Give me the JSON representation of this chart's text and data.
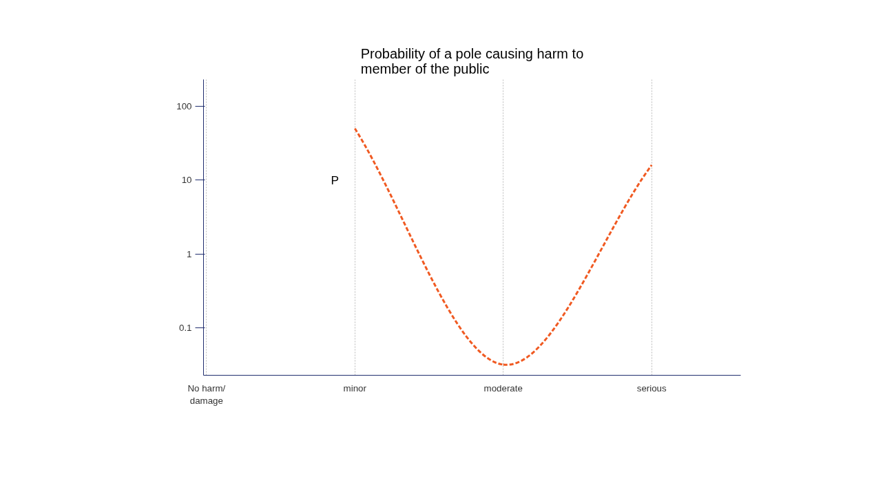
{
  "chart_data": {
    "type": "line",
    "title": "Probability of a pole causing harm to\nmember of the public",
    "ylabel": "P",
    "log": true,
    "categories": [
      "No harm/\ndamage",
      "minor",
      "moderate",
      "serious"
    ],
    "series": [
      {
        "color": "#f05a22",
        "values": [
          null,
          50,
          0.032,
          16
        ]
      }
    ],
    "line_style": "dashed",
    "marker": "none",
    "grid": "x",
    "ylim": [
      0.023,
      230
    ],
    "yticks": [
      0.1,
      1,
      10,
      100
    ]
  }
}
